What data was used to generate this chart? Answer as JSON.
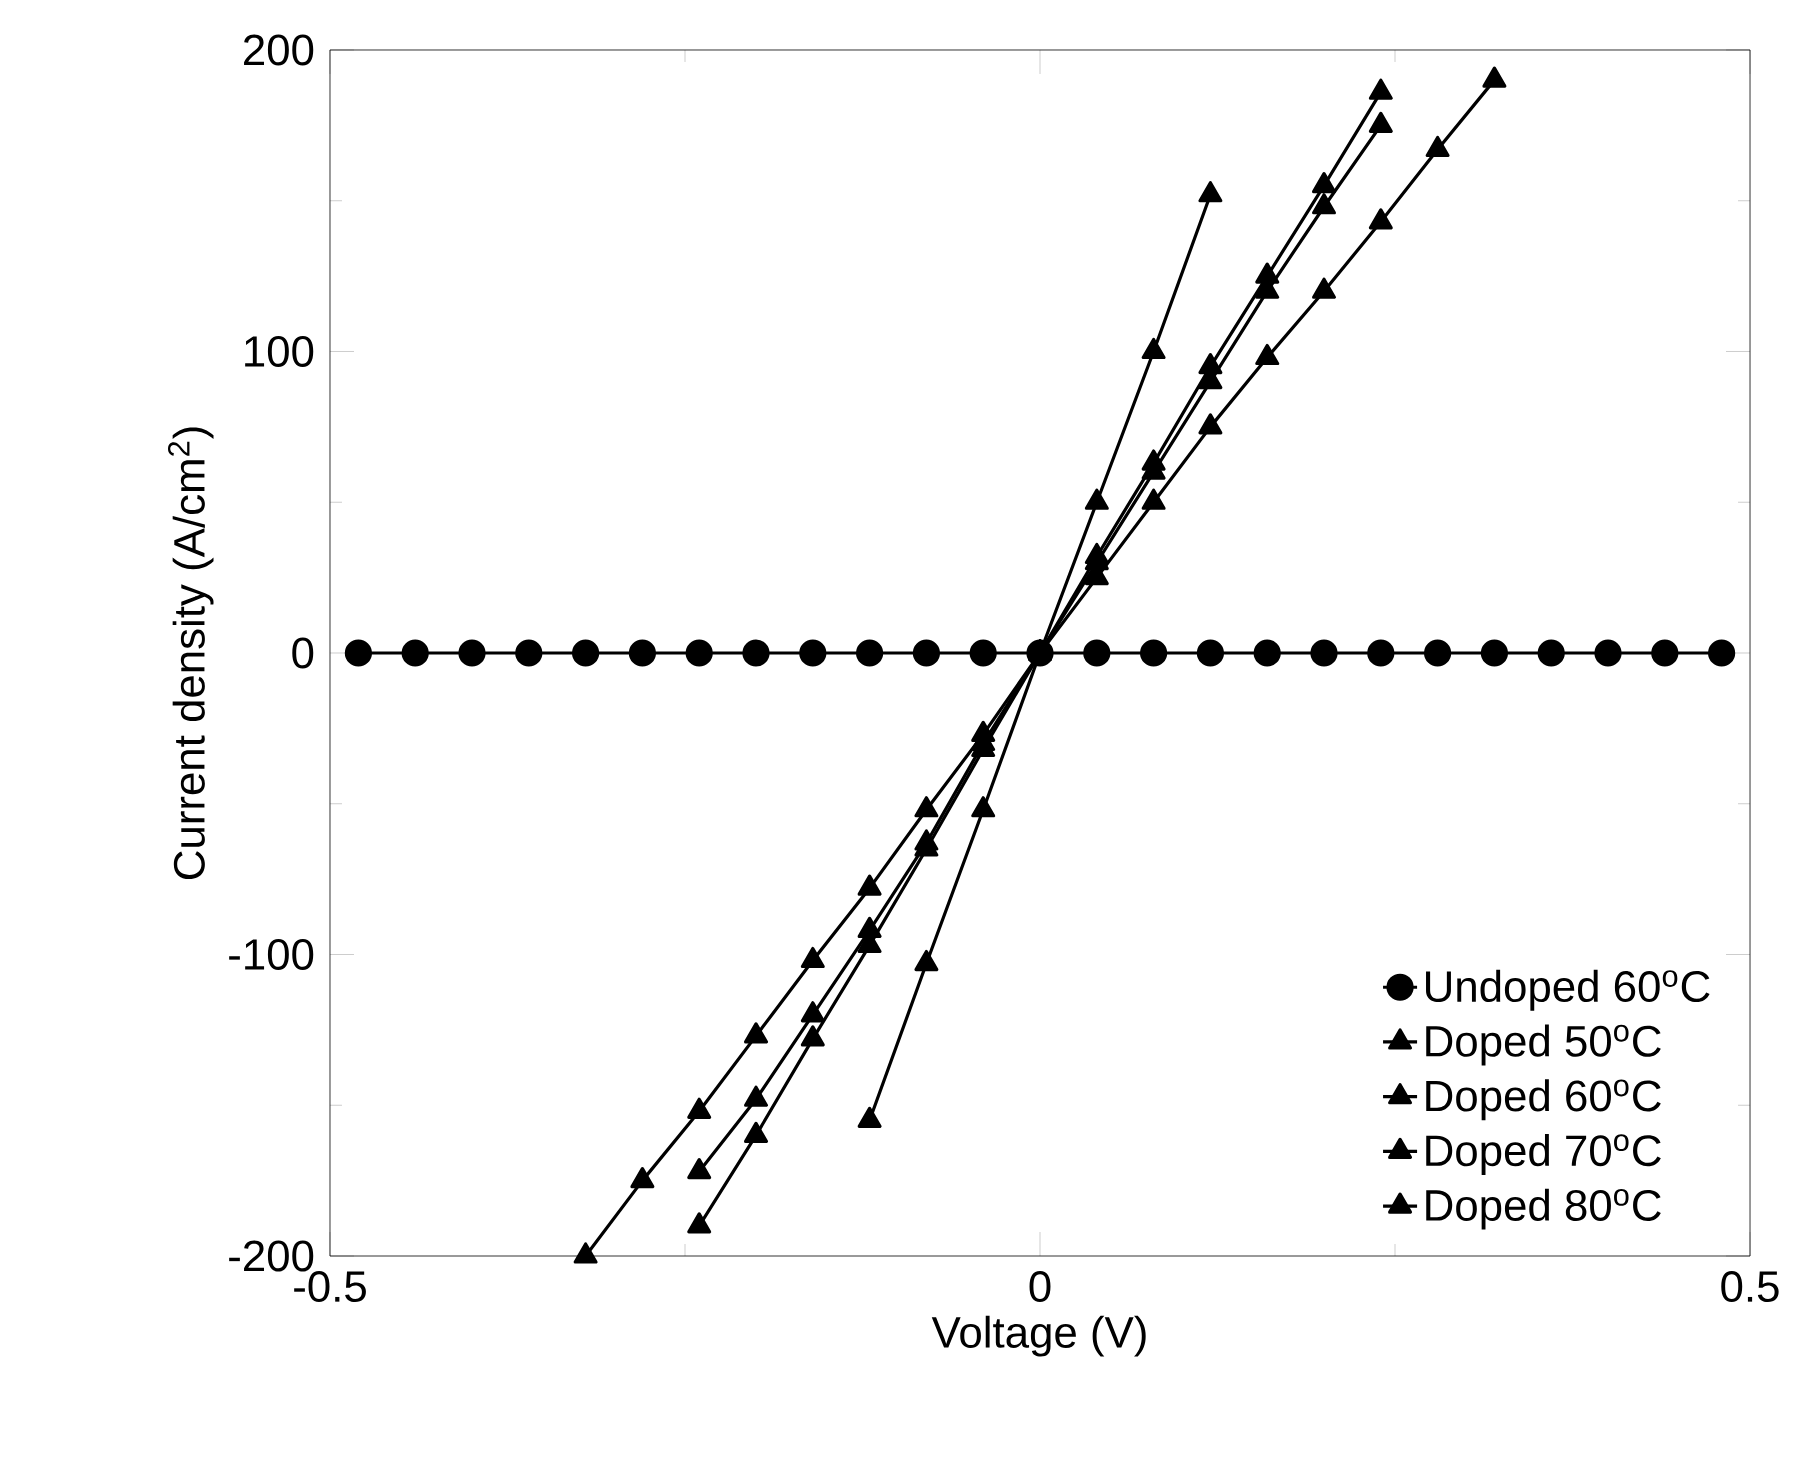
{
  "chart_data": {
    "type": "line",
    "xlabel": "Voltage (V)",
    "ylabel": "Current density (A/cm$^{2}$)",
    "xlim": [
      -0.5,
      0.5
    ],
    "ylim": [
      -200,
      200
    ],
    "xticks": [
      -0.5,
      0,
      0.5
    ],
    "yticks": [
      -200,
      -100,
      0,
      100,
      200
    ],
    "legend": "bottom right",
    "grid": false,
    "line_style": "solid",
    "series": [
      {
        "name": "Undoped 60$^{o}$C",
        "color": "#000000",
        "marker": "circle",
        "x": [
          -0.48,
          -0.44,
          -0.4,
          -0.36,
          -0.32,
          -0.28,
          -0.24,
          -0.2,
          -0.16,
          -0.12,
          -0.08,
          -0.04,
          0,
          0.04,
          0.08,
          0.12,
          0.16,
          0.2,
          0.24,
          0.28,
          0.32,
          0.36,
          0.4,
          0.44,
          0.48
        ],
        "values": [
          0,
          0,
          0,
          0,
          0,
          0,
          0,
          0,
          0,
          0,
          0,
          0,
          0,
          0,
          0,
          0,
          0,
          0,
          0,
          0,
          0,
          0,
          0,
          0,
          0
        ]
      },
      {
        "name": "Doped 50$^{o}$C",
        "color": "#000000",
        "marker": "triangle",
        "x": [
          -0.32,
          -0.28,
          -0.24,
          -0.2,
          -0.16,
          -0.12,
          -0.08,
          -0.04,
          0,
          0.04,
          0.08,
          0.12,
          0.16,
          0.2,
          0.24,
          0.28,
          0.32
        ],
        "values": [
          -200,
          -175,
          -152,
          -127,
          -102,
          -78,
          -52,
          -27,
          0,
          25,
          50,
          75,
          98,
          120,
          143,
          167,
          190
        ]
      },
      {
        "name": "Doped 60$^{o}$C",
        "color": "#000000",
        "marker": "triangle",
        "x": [
          -0.24,
          -0.2,
          -0.16,
          -0.12,
          -0.08,
          -0.04,
          0,
          0.04,
          0.08,
          0.12,
          0.16,
          0.2,
          0.24
        ],
        "values": [
          -172,
          -148,
          -120,
          -92,
          -63,
          -30,
          0,
          30,
          60,
          90,
          120,
          148,
          175
        ]
      },
      {
        "name": "Doped 70$^{o}$C",
        "color": "#000000",
        "marker": "triangle",
        "x": [
          -0.24,
          -0.2,
          -0.16,
          -0.12,
          -0.08,
          -0.04,
          0,
          0.04,
          0.08,
          0.12,
          0.16,
          0.2,
          0.24
        ],
        "values": [
          -190,
          -160,
          -128,
          -97,
          -65,
          -32,
          0,
          32,
          63,
          95,
          125,
          155,
          186
        ]
      },
      {
        "name": "Doped 80$^{o}$C",
        "color": "#000000",
        "marker": "triangle",
        "x": [
          -0.12,
          -0.08,
          -0.04,
          0,
          0.04,
          0.08,
          0.12
        ],
        "values": [
          -155,
          -103,
          -52,
          0,
          50,
          100,
          152
        ]
      }
    ]
  }
}
